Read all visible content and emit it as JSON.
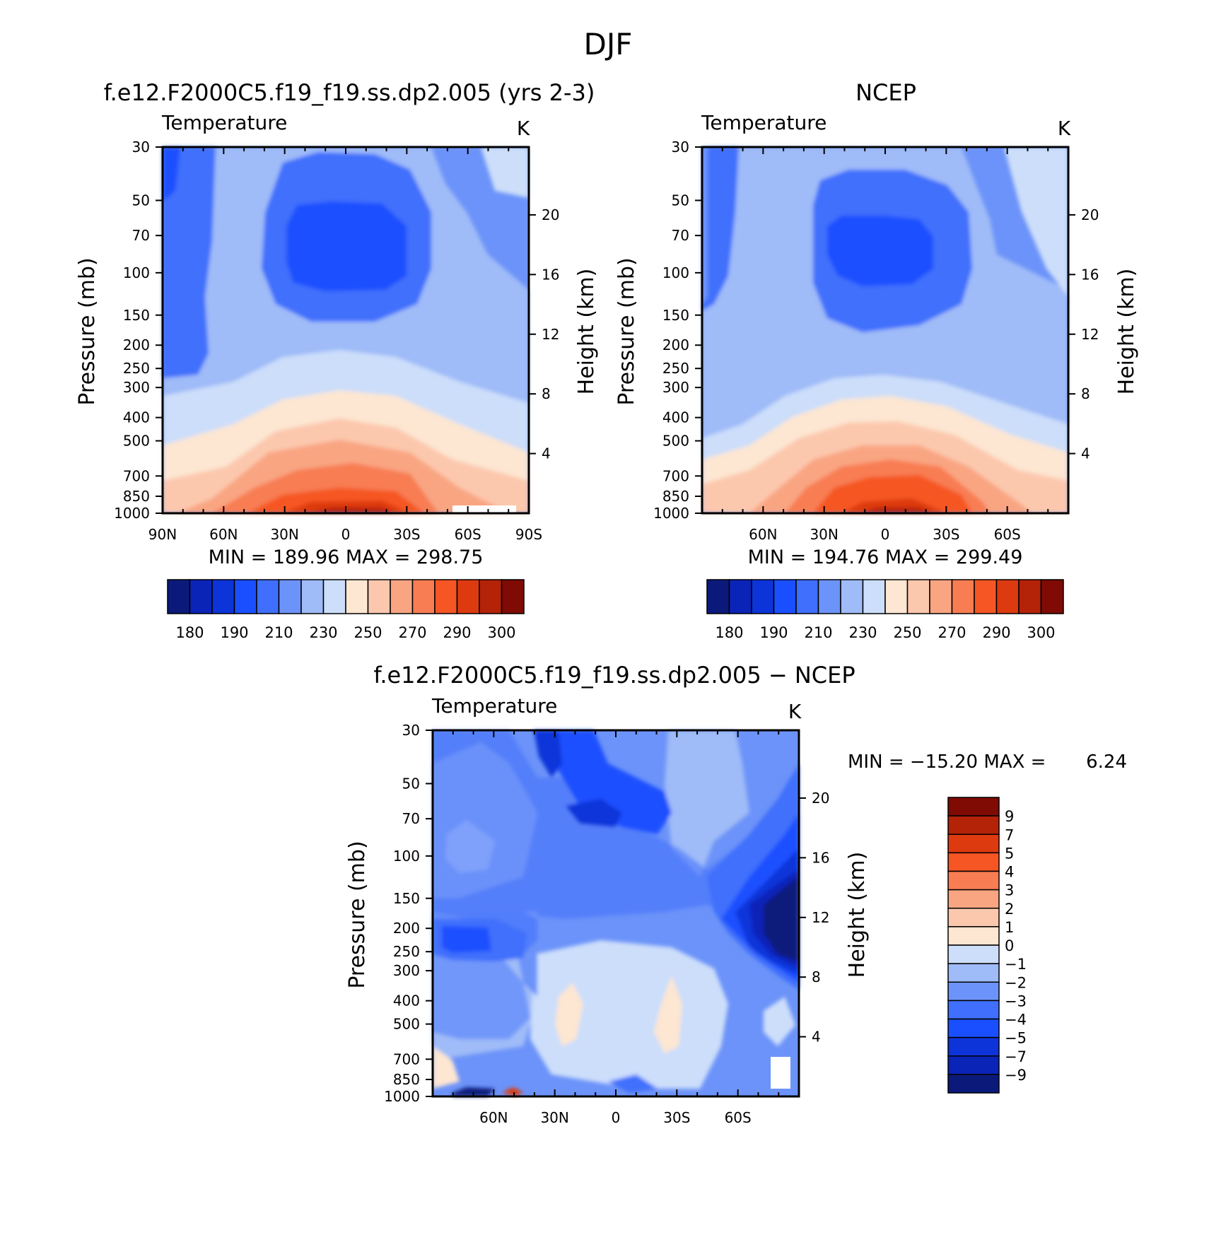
{
  "figure": {
    "title": "DJF",
    "colormap_abs": [
      "#0b1a7a",
      "#0a24b8",
      "#0c34d9",
      "#1a4fff",
      "#3f6ffc",
      "#6c93f9",
      "#9fbbf8",
      "#ccdefa",
      "#fde6d2",
      "#fcc8ad",
      "#f9a582",
      "#f87d53",
      "#f55624",
      "#de3a10",
      "#b42208",
      "#7f0b04"
    ],
    "colormap_diff": [
      "#0b1a7a",
      "#0a24b8",
      "#0c34d9",
      "#1a4fff",
      "#3f6ffc",
      "#6c93f9",
      "#9fbbf8",
      "#ccdefa",
      "#fde6d2",
      "#fcc8ad",
      "#f9a582",
      "#f87d53",
      "#f55624",
      "#de3a10",
      "#b42208",
      "#7f0b04"
    ]
  },
  "chart_data": [
    {
      "type": "heatmap",
      "panel": "model",
      "title": "f.e12.F2000C5.f19_f19.ss.dp2.005 (yrs 2-3)",
      "label_left": "Temperature",
      "label_right": "K",
      "ylabel": "Pressure (mb)",
      "ylabel_right": "Height (km)",
      "x_ticks": [
        "90N",
        "60N",
        "30N",
        "0",
        "30S",
        "60S",
        "90S"
      ],
      "x_range": [
        90,
        -90
      ],
      "y_ticks": [
        "30",
        "50",
        "70",
        "100",
        "150",
        "200",
        "250",
        "300",
        "400",
        "500",
        "700",
        "850",
        "1000"
      ],
      "y_range": [
        30,
        1000
      ],
      "y_scale": "log",
      "height_ticks": [
        "20",
        "16",
        "12",
        "8",
        "4"
      ],
      "min_max": "MIN = 189.96   MAX = 298.75",
      "min": 189.96,
      "max": 298.75,
      "levels": [
        180,
        185,
        190,
        200,
        210,
        220,
        230,
        240,
        250,
        260,
        270,
        280,
        290,
        295,
        300
      ],
      "colorbar_labels": [
        "180",
        "190",
        "210",
        "230",
        "250",
        "270",
        "290",
        "300"
      ]
    },
    {
      "type": "heatmap",
      "panel": "obs",
      "title": "NCEP",
      "label_left": "Temperature",
      "label_right": "K",
      "ylabel": "Pressure (mb)",
      "ylabel_right": "Height (km)",
      "x_ticks": [
        "60N",
        "30N",
        "0",
        "30S",
        "60S"
      ],
      "x_range": [
        90,
        -90
      ],
      "y_ticks": [
        "30",
        "50",
        "70",
        "100",
        "150",
        "200",
        "250",
        "300",
        "400",
        "500",
        "700",
        "850",
        "1000"
      ],
      "y_range": [
        30,
        1000
      ],
      "y_scale": "log",
      "height_ticks": [
        "20",
        "16",
        "12",
        "8",
        "4"
      ],
      "min_max": "MIN = 194.76   MAX = 299.49",
      "min": 194.76,
      "max": 299.49,
      "levels": [
        180,
        185,
        190,
        200,
        210,
        220,
        230,
        240,
        250,
        260,
        270,
        280,
        290,
        295,
        300
      ],
      "colorbar_labels": [
        "180",
        "190",
        "210",
        "230",
        "250",
        "270",
        "290",
        "300"
      ]
    },
    {
      "type": "heatmap",
      "panel": "diff",
      "title": "f.e12.F2000C5.f19_f19.ss.dp2.005 − NCEP",
      "label_left": "Temperature",
      "label_right": "K",
      "ylabel": "Pressure (mb)",
      "ylabel_right": "Height (km)",
      "x_ticks": [
        "60N",
        "30N",
        "0",
        "30S",
        "60S"
      ],
      "x_range": [
        90,
        -90
      ],
      "y_ticks": [
        "30",
        "50",
        "70",
        "100",
        "150",
        "200",
        "250",
        "300",
        "400",
        "500",
        "700",
        "850",
        "1000"
      ],
      "y_range": [
        30,
        1000
      ],
      "y_scale": "log",
      "height_ticks": [
        "20",
        "16",
        "12",
        "8",
        "4"
      ],
      "min_max_label": "MIN = −15.20   MAX =",
      "max_value_label": "6.24",
      "min": -15.2,
      "max": 6.24,
      "levels": [
        -9,
        -7,
        -5,
        -4,
        -3,
        -2,
        -1,
        0,
        1,
        2,
        3,
        4,
        5,
        7,
        9
      ],
      "colorbar_labels": [
        "9",
        "7",
        "5",
        "4",
        "3",
        "2",
        "1",
        "0",
        "−1",
        "−2",
        "−3",
        "−4",
        "−5",
        "−7",
        "−9"
      ]
    }
  ]
}
